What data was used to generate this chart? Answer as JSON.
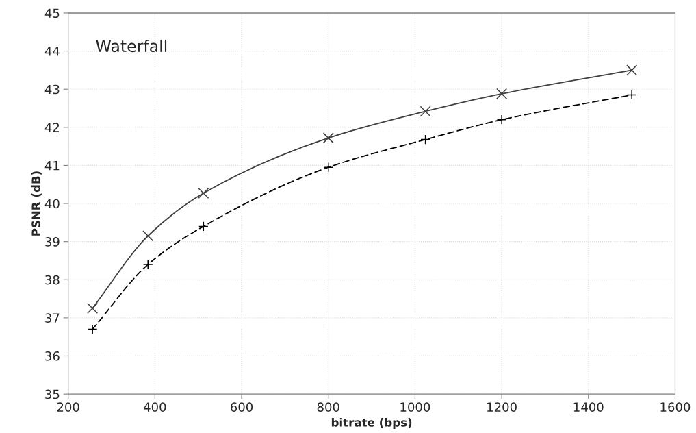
{
  "chart_data": {
    "type": "line",
    "xlabel": "bitrate (bps)",
    "ylabel": "PSNR (dB)",
    "annotations": [
      "Waterfall"
    ],
    "x": [
      256,
      384,
      512,
      800,
      1024,
      1200,
      1500
    ],
    "series": [
      {
        "color": "#404040",
        "marker": "cross",
        "line_style": "solid",
        "values": [
          37.25,
          39.15,
          40.27,
          41.72,
          42.42,
          42.88,
          43.5
        ]
      },
      {
        "color": "#000000",
        "marker": "plus",
        "line_style": "dashed",
        "values": [
          36.7,
          38.4,
          39.4,
          40.95,
          41.68,
          42.2,
          42.85
        ]
      }
    ],
    "xlim": [
      200,
      1600
    ],
    "xticks": [
      200,
      400,
      600,
      800,
      1000,
      1200,
      1400,
      1600
    ],
    "ylim": [
      35,
      45
    ],
    "yticks": [
      35,
      36,
      37,
      38,
      39,
      40,
      41,
      42,
      43,
      44,
      45
    ],
    "grid": true,
    "legend": false
  }
}
